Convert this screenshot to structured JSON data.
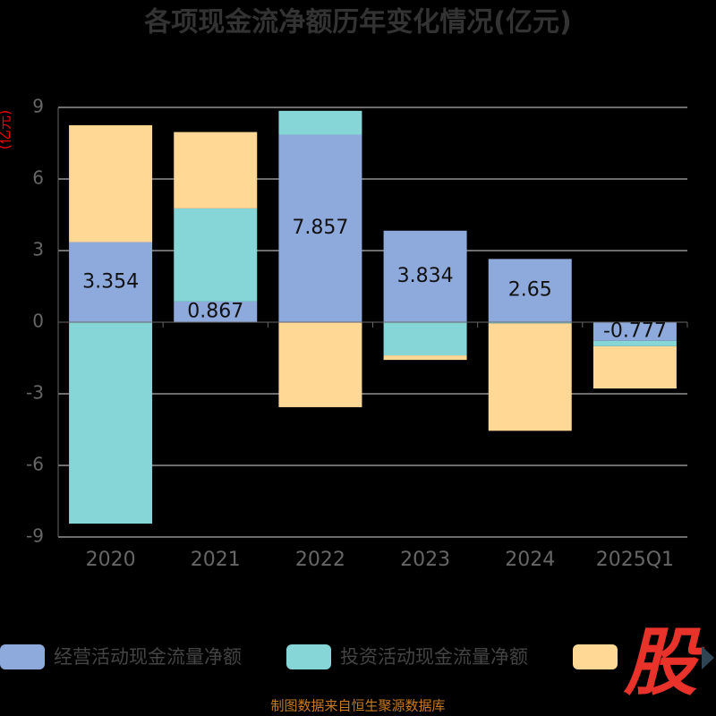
{
  "chart_data": {
    "type": "bar",
    "stacked": true,
    "title": "各项现金流净额历年变化情况(亿元)",
    "y_label": "(亿元)",
    "categories": [
      "2020",
      "2021",
      "2022",
      "2023",
      "2024",
      "2025Q1"
    ],
    "series": [
      {
        "name": "经营活动现金流量净额",
        "color": "#8eaadc",
        "values": [
          3.354,
          0.867,
          7.857,
          3.834,
          2.65,
          -0.777
        ],
        "show_labels": true
      },
      {
        "name": "投资活动现金流量净额",
        "color": "#86d6d8",
        "values": [
          -8.44,
          3.9,
          1.0,
          -1.39,
          -0.05,
          -0.23
        ]
      },
      {
        "color": "#ffd896",
        "values": [
          4.9,
          3.2,
          -3.56,
          -0.19,
          -4.5,
          -1.77
        ]
      }
    ],
    "ylim": [
      -9,
      9
    ],
    "yticks": [
      -9,
      -6,
      -3,
      0,
      3,
      6,
      9
    ],
    "grid": true,
    "source": "制图数据来自恒生聚源数据库",
    "watermark": "股"
  }
}
